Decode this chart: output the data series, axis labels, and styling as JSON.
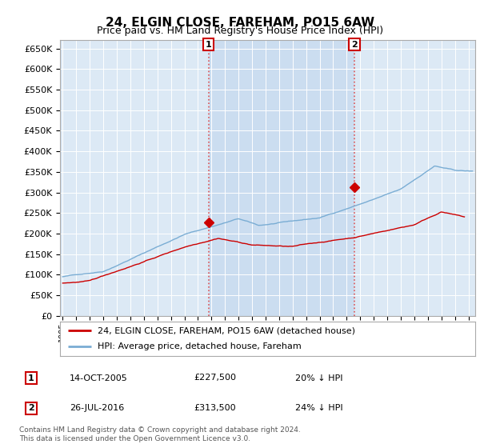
{
  "title": "24, ELGIN CLOSE, FAREHAM, PO15 6AW",
  "subtitle": "Price paid vs. HM Land Registry's House Price Index (HPI)",
  "ylabel_ticks": [
    "£0",
    "£50K",
    "£100K",
    "£150K",
    "£200K",
    "£250K",
    "£300K",
    "£350K",
    "£400K",
    "£450K",
    "£500K",
    "£550K",
    "£600K",
    "£650K"
  ],
  "ytick_values": [
    0,
    50000,
    100000,
    150000,
    200000,
    250000,
    300000,
    350000,
    400000,
    450000,
    500000,
    550000,
    600000,
    650000
  ],
  "ylim": [
    0,
    670000
  ],
  "xlim_start": 1994.8,
  "xlim_end": 2025.5,
  "background_color": "#dce9f5",
  "shaded_color": "#c5d9ee",
  "grid_color": "#ffffff",
  "red_line_color": "#cc0000",
  "blue_line_color": "#7aadd4",
  "marker1_x": 2005.79,
  "marker1_y": 227500,
  "marker2_x": 2016.57,
  "marker2_y": 313500,
  "vline_color": "#dd4444",
  "legend_label_red": "24, ELGIN CLOSE, FAREHAM, PO15 6AW (detached house)",
  "legend_label_blue": "HPI: Average price, detached house, Fareham",
  "annotation1_date": "14-OCT-2005",
  "annotation1_price": "£227,500",
  "annotation1_hpi": "20% ↓ HPI",
  "annotation2_date": "26-JUL-2016",
  "annotation2_price": "£313,500",
  "annotation2_hpi": "24% ↓ HPI",
  "footer": "Contains HM Land Registry data © Crown copyright and database right 2024.\nThis data is licensed under the Open Government Licence v3.0.",
  "title_fontsize": 11,
  "subtitle_fontsize": 9
}
